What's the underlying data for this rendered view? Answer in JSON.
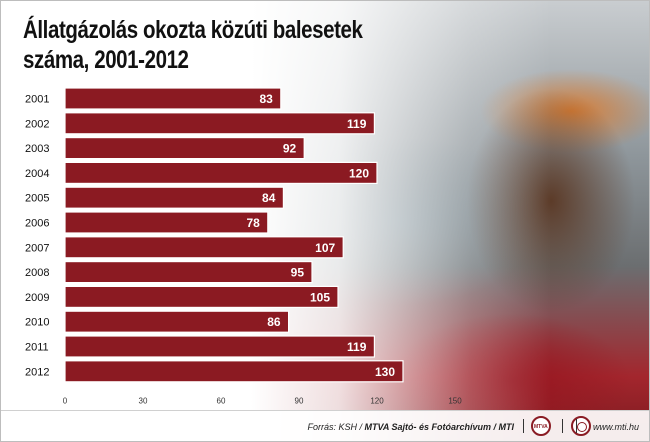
{
  "title_lines": [
    "Állatgázolás okozta közúti balesetek",
    "száma, 2001-2012"
  ],
  "chart_data": {
    "type": "bar",
    "orientation": "horizontal",
    "categories": [
      "2001",
      "2002",
      "2003",
      "2004",
      "2005",
      "2006",
      "2007",
      "2008",
      "2009",
      "2010",
      "2011",
      "2012"
    ],
    "values": [
      83,
      119,
      92,
      120,
      84,
      78,
      107,
      95,
      105,
      86,
      119,
      130
    ],
    "xlim": [
      0,
      150
    ],
    "xticks": [
      "0",
      "30",
      "60",
      "90",
      "120",
      "150"
    ],
    "bar_color": "#8b1a22",
    "bar_outline": "#ffffff",
    "value_label_color": "#ffffff",
    "grid": false
  },
  "footer": {
    "source_prefix": "Forrás: KSH / ",
    "source_bold": "MTVA Sajtó- és Fotóarchívum / MTI",
    "url": "www.mti.hu"
  }
}
